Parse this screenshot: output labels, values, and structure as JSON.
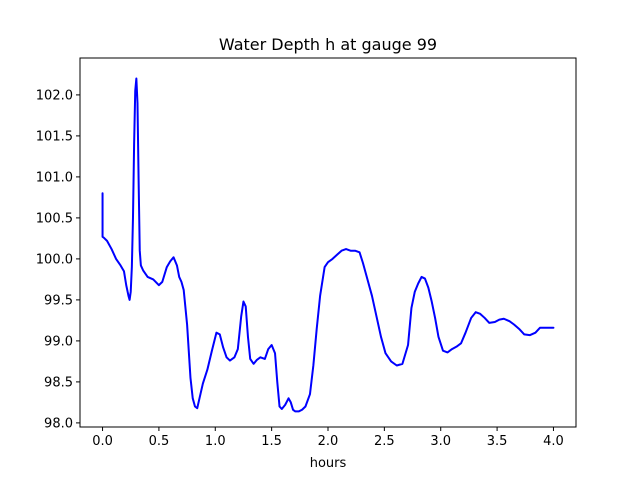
{
  "chart_data": {
    "type": "line",
    "title": "Water Depth h at gauge 99",
    "xlabel": "hours",
    "ylabel": "",
    "xlim": [
      -0.2,
      4.2
    ],
    "ylim": [
      97.95,
      102.45
    ],
    "xticks": [
      0.0,
      0.5,
      1.0,
      1.5,
      2.0,
      2.5,
      3.0,
      3.5,
      4.0
    ],
    "xtick_labels": [
      "0.0",
      "0.5",
      "1.0",
      "1.5",
      "2.0",
      "2.5",
      "3.0",
      "3.5",
      "4.0"
    ],
    "yticks": [
      98.0,
      98.5,
      99.0,
      99.5,
      100.0,
      100.5,
      101.0,
      101.5,
      102.0
    ],
    "ytick_labels": [
      "98.0",
      "98.5",
      "99.0",
      "99.5",
      "100.0",
      "100.5",
      "101.0",
      "101.5",
      "102.0"
    ],
    "grid": false,
    "series": [
      {
        "color": "#0000ff",
        "x": [
          0.0,
          0.0,
          0.01,
          0.04,
          0.08,
          0.12,
          0.16,
          0.19,
          0.21,
          0.23,
          0.24,
          0.25,
          0.26,
          0.27,
          0.28,
          0.29,
          0.3,
          0.31,
          0.32,
          0.33,
          0.34,
          0.36,
          0.4,
          0.45,
          0.5,
          0.53,
          0.57,
          0.6,
          0.63,
          0.66,
          0.68,
          0.7,
          0.72,
          0.75,
          0.78,
          0.8,
          0.82,
          0.84,
          0.86,
          0.89,
          0.93,
          0.97,
          1.01,
          1.04,
          1.07,
          1.1,
          1.13,
          1.17,
          1.2,
          1.23,
          1.25,
          1.27,
          1.29,
          1.31,
          1.34,
          1.37,
          1.4,
          1.44,
          1.47,
          1.5,
          1.53,
          1.55,
          1.57,
          1.59,
          1.62,
          1.65,
          1.67,
          1.69,
          1.71,
          1.74,
          1.77,
          1.8,
          1.84,
          1.87,
          1.9,
          1.93,
          1.97,
          2.0,
          2.04,
          2.08,
          2.12,
          2.16,
          2.2,
          2.24,
          2.28,
          2.31,
          2.35,
          2.39,
          2.43,
          2.47,
          2.51,
          2.56,
          2.61,
          2.66,
          2.71,
          2.74,
          2.77,
          2.8,
          2.83,
          2.86,
          2.89,
          2.92,
          2.95,
          2.98,
          3.02,
          3.06,
          3.1,
          3.14,
          3.18,
          3.22,
          3.27,
          3.31,
          3.35,
          3.39,
          3.43,
          3.48,
          3.52,
          3.56,
          3.61,
          3.65,
          3.7,
          3.74,
          3.79,
          3.84,
          3.88,
          3.92,
          3.96,
          4.0
        ],
        "y": [
          100.8,
          100.27,
          100.26,
          100.22,
          100.12,
          100.0,
          99.92,
          99.85,
          99.68,
          99.55,
          99.5,
          99.6,
          99.9,
          100.5,
          101.4,
          102.05,
          102.2,
          101.9,
          100.95,
          100.1,
          99.92,
          99.86,
          99.78,
          99.75,
          99.68,
          99.72,
          99.9,
          99.97,
          100.02,
          99.92,
          99.78,
          99.72,
          99.62,
          99.2,
          98.55,
          98.3,
          98.2,
          98.18,
          98.3,
          98.48,
          98.65,
          98.88,
          99.1,
          99.08,
          98.92,
          98.8,
          98.76,
          98.8,
          98.9,
          99.3,
          99.48,
          99.42,
          99.05,
          98.78,
          98.72,
          98.77,
          98.8,
          98.78,
          98.9,
          98.95,
          98.85,
          98.5,
          98.2,
          98.17,
          98.22,
          98.3,
          98.25,
          98.16,
          98.14,
          98.14,
          98.16,
          98.2,
          98.35,
          98.7,
          99.15,
          99.55,
          99.9,
          99.96,
          100.0,
          100.05,
          100.1,
          100.12,
          100.1,
          100.1,
          100.08,
          99.95,
          99.75,
          99.55,
          99.3,
          99.05,
          98.85,
          98.75,
          98.7,
          98.72,
          98.95,
          99.4,
          99.6,
          99.7,
          99.78,
          99.76,
          99.65,
          99.48,
          99.28,
          99.05,
          98.88,
          98.86,
          98.9,
          98.93,
          98.97,
          99.1,
          99.28,
          99.35,
          99.33,
          99.28,
          99.22,
          99.23,
          99.26,
          99.27,
          99.24,
          99.2,
          99.14,
          99.08,
          99.07,
          99.1,
          99.16,
          99.16,
          99.16,
          99.16
        ]
      }
    ]
  }
}
